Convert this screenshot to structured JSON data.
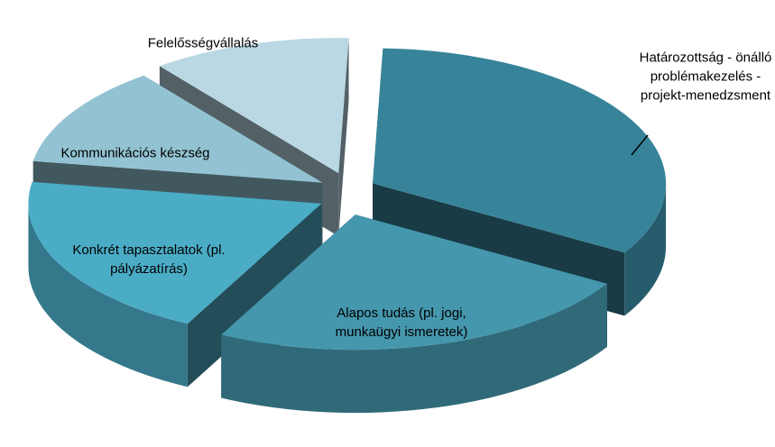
{
  "chart_data": {
    "type": "pie3d",
    "categories": [
      "Határozottság - önálló problémakezelés - projekt-menedzsment",
      "Alapos tudás (pl. jogi, munkaügyi ismeretek)",
      "Konkrét tapasztalatok (pl. pályázatírás)",
      "Kommunikációs készség",
      "Felelősségvállalás"
    ],
    "values": [
      33,
      24,
      20,
      12,
      11
    ],
    "colors": [
      "#37849a",
      "#4597ad",
      "#4bacc6",
      "#93c3d3",
      "#b9d8e4"
    ]
  }
}
